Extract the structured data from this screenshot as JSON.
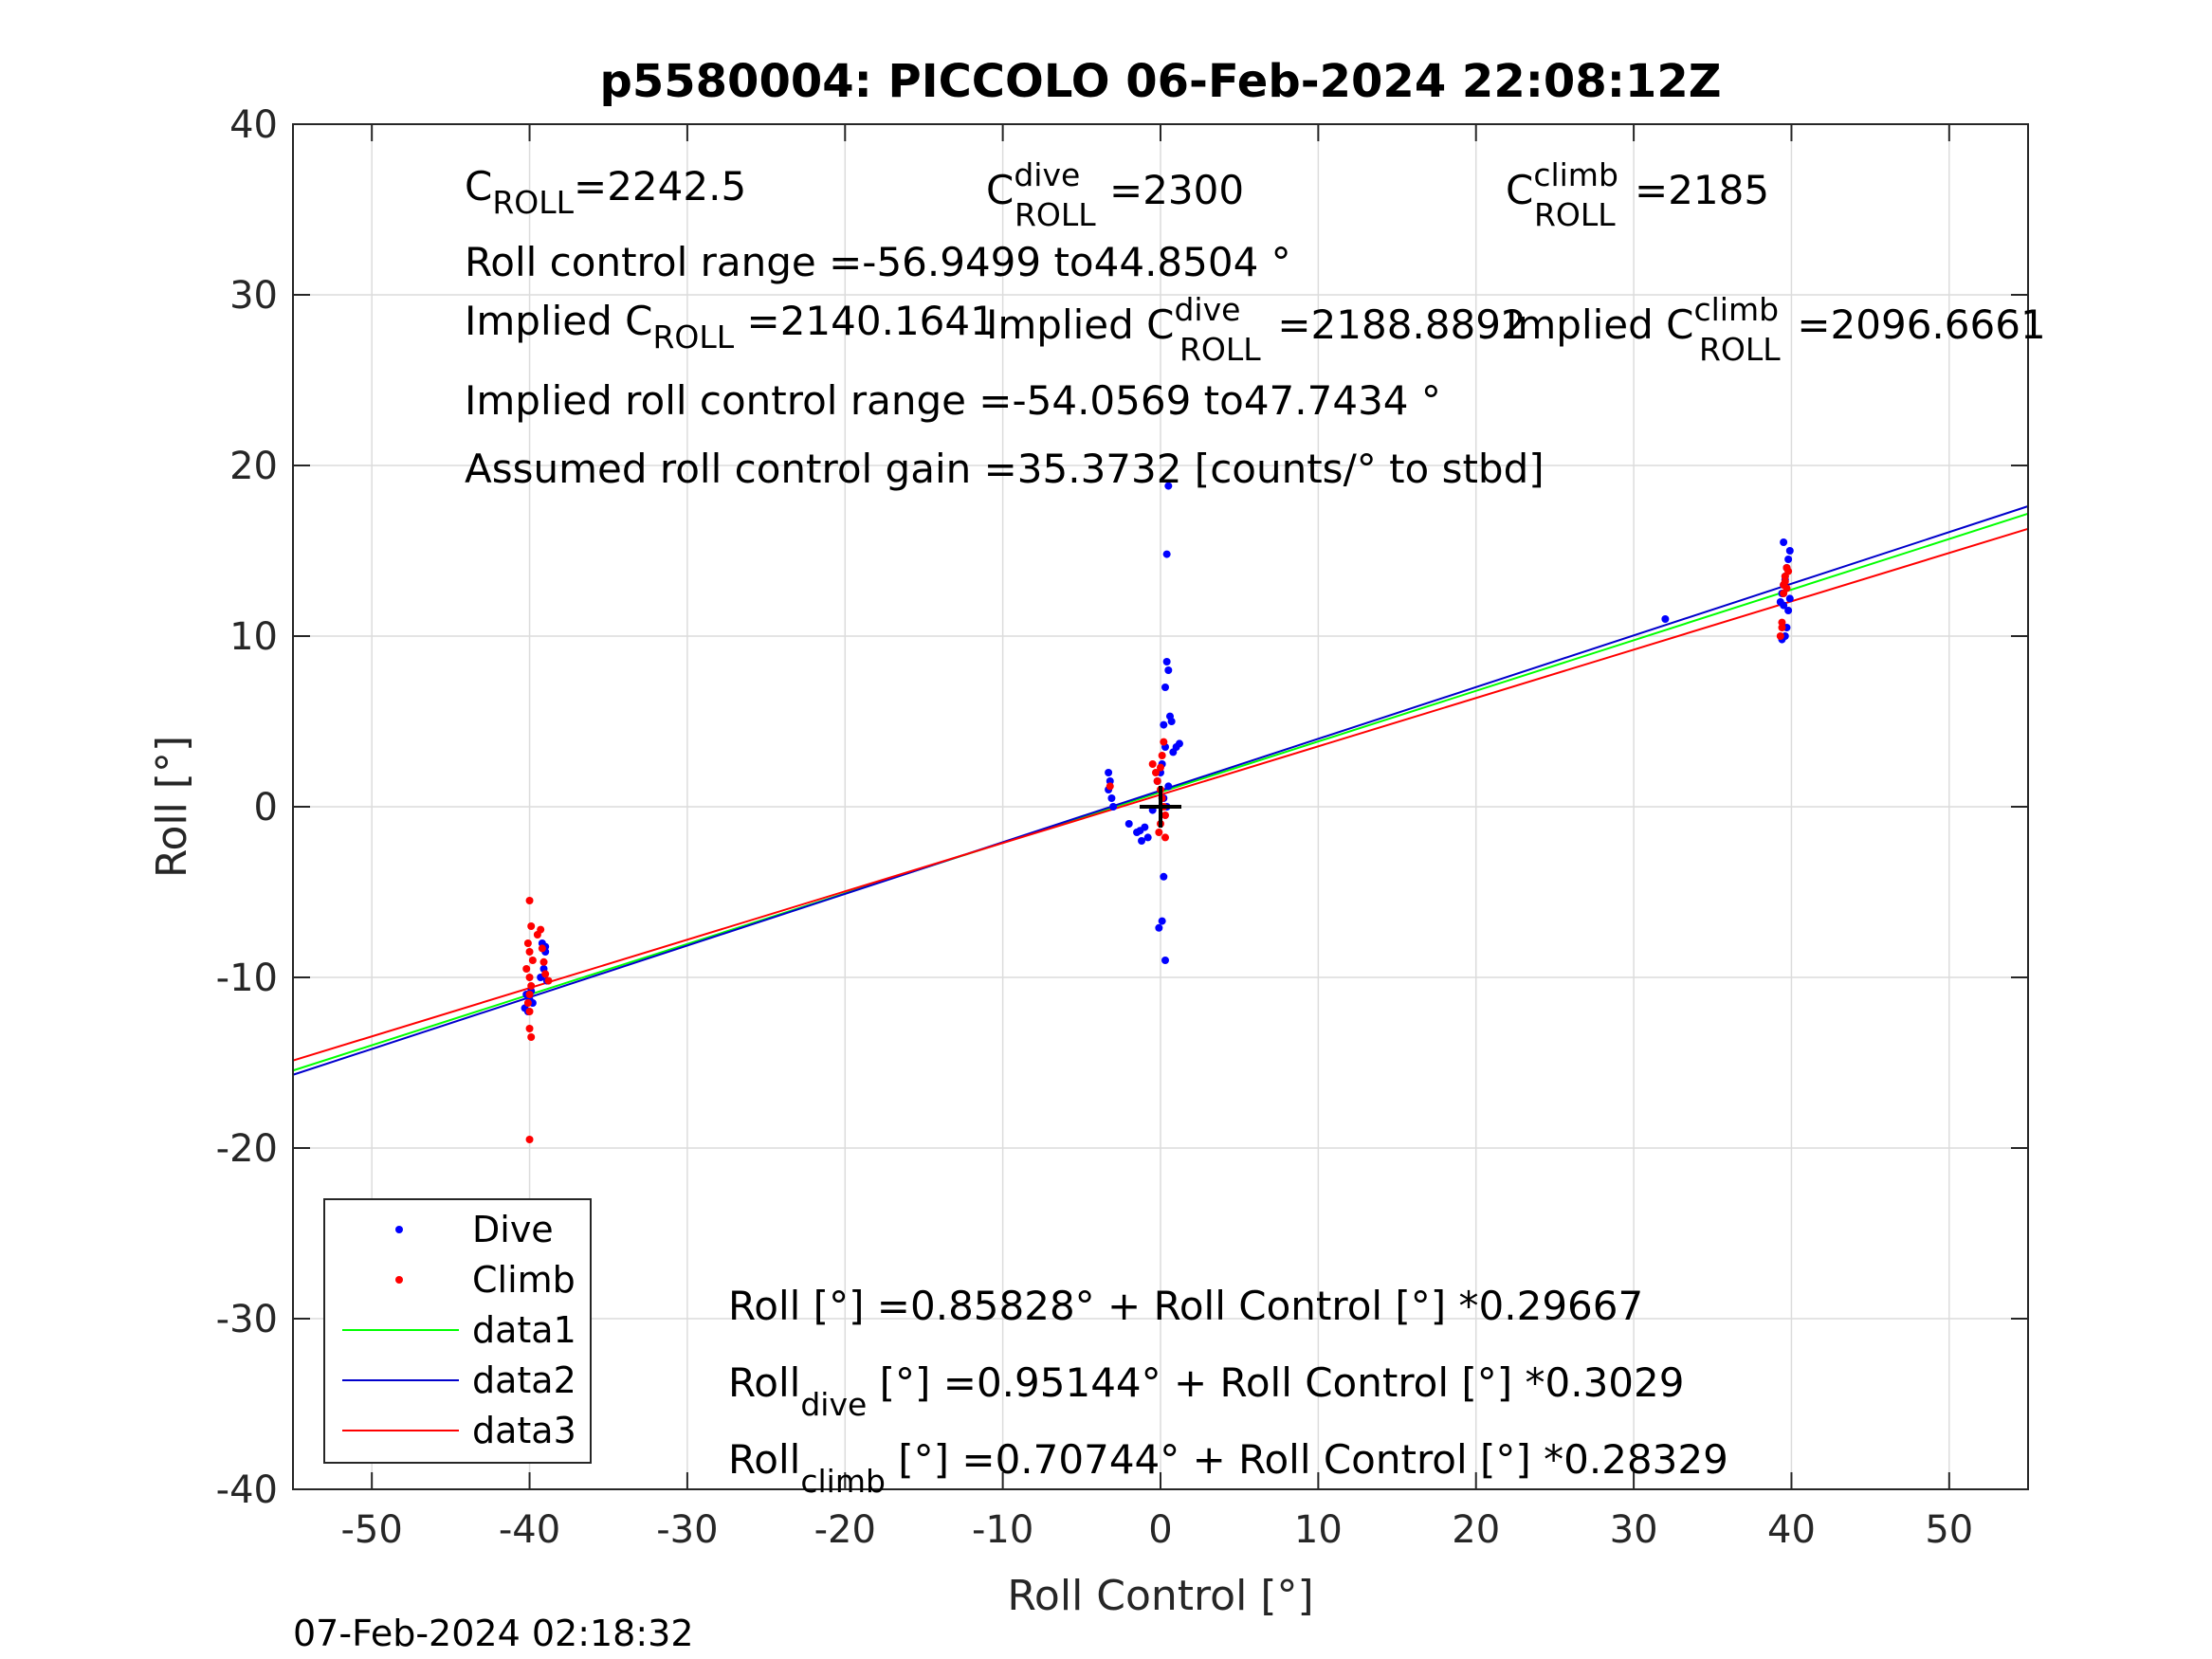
{
  "chart_data": {
    "type": "scatter",
    "title": "p5580004: PICCOLO 06-Feb-2024 22:08:12Z",
    "xlabel": "Roll Control [°]",
    "ylabel": "Roll [°]",
    "xlim": [
      -55,
      55
    ],
    "ylim": [
      -40,
      40
    ],
    "xticks": [
      -50,
      -40,
      -30,
      -20,
      -10,
      0,
      10,
      20,
      30,
      40,
      50
    ],
    "yticks": [
      -40,
      -30,
      -20,
      -10,
      0,
      10,
      20,
      30,
      40
    ],
    "grid": true,
    "legend_position": "bottom-left",
    "timestamp": "07-Feb-2024 02:18:32",
    "annotations": {
      "c_roll_base": "C",
      "c_roll_sub": "ROLL",
      "c_roll_value": "=2242.5",
      "c_dive_base": "C",
      "c_dive_sup": "dive",
      "c_dive_sub": "ROLL",
      "c_dive_value": "=2300",
      "c_climb_base": "C",
      "c_climb_sup": "climb",
      "c_climb_sub": "ROLL",
      "c_climb_value": "=2185",
      "roll_range": "Roll control range =-56.9499 to44.8504 °",
      "implied_c_label": "Implied C",
      "implied_c_sub": "ROLL",
      "implied_c_value": " =2140.1641",
      "implied_dive_label": "Implied C",
      "implied_dive_sup": "dive",
      "implied_dive_sub": "ROLL",
      "implied_dive_value": " =2188.8892",
      "implied_climb_label": "Implied C",
      "implied_climb_sup": "climb",
      "implied_climb_sub": "ROLL",
      "implied_climb_value": " =2096.6661",
      "implied_range": "Implied roll control range =-54.0569 to47.7434 °",
      "gain": "Assumed roll control gain =35.3732 [counts/° to stbd]",
      "fit_all": "Roll [°] =0.85828° + Roll Control [°] *0.29667",
      "fit_dive_base": "Roll",
      "fit_dive_sub": "dive",
      "fit_dive_rest": " [°] =0.95144° + Roll Control [°] *0.3029",
      "fit_climb_base": "Roll",
      "fit_climb_sub": "climb",
      "fit_climb_rest": " [°] =0.70744° + Roll Control [°] *0.28329"
    },
    "marker": {
      "x": 0,
      "y": 0,
      "style": "plus",
      "color": "#000000"
    },
    "colors": {
      "dive": "#0000ff",
      "climb": "#ff0000",
      "data1": "#00ff00",
      "data2": "#0000cc",
      "data3": "#ff0000"
    },
    "series": [
      {
        "name": "Dive",
        "kind": "points",
        "color": "#0000ff",
        "x": [
          -40.2,
          -40.0,
          -39.8,
          -40.3,
          -39.9,
          -40.1,
          -39.2,
          -39.0,
          -39.1,
          -39.3,
          -38.9,
          -39.0,
          -3.3,
          -3.2,
          -3.3,
          -3.1,
          -3.0,
          -2.0,
          -1.5,
          -1.2,
          -1.0,
          -0.8,
          -1.3,
          -0.5,
          -0.2,
          0.0,
          0.1,
          0.2,
          0.3,
          0.4,
          0.5,
          0.6,
          0.7,
          0.8,
          1.0,
          1.2,
          0.5,
          0.4,
          0.3,
          0.2,
          0.1,
          -0.1,
          0.3,
          0.2,
          0.5,
          0.4,
          32.0,
          39.3,
          39.4,
          39.5,
          39.6,
          39.7,
          39.8,
          39.9,
          39.5,
          39.6,
          39.4,
          39.7,
          39.8,
          39.5,
          39.9,
          39.6
        ],
        "y": [
          -11.0,
          -11.3,
          -11.5,
          -11.8,
          -10.8,
          -12.0,
          -8.0,
          -8.5,
          -9.5,
          -10.0,
          -10.2,
          -8.2,
          2.0,
          1.5,
          1.0,
          0.5,
          0.0,
          -1.0,
          -1.5,
          -2.0,
          -1.2,
          -1.8,
          -1.4,
          -0.2,
          1.5,
          2.0,
          2.5,
          4.8,
          3.5,
          8.5,
          8.0,
          5.3,
          5.0,
          3.2,
          3.5,
          3.7,
          18.8,
          14.8,
          7.0,
          -4.1,
          -6.7,
          -7.1,
          -9.0,
          0.5,
          1.2,
          0.0,
          11.0,
          12.0,
          12.5,
          13.0,
          13.5,
          14.0,
          14.5,
          15.0,
          15.5,
          10.0,
          9.8,
          10.5,
          11.5,
          11.8,
          12.2,
          13.3
        ]
      },
      {
        "name": "Climb",
        "kind": "points",
        "color": "#ff0000",
        "x": [
          -40.0,
          -39.9,
          -40.1,
          -40.0,
          -39.8,
          -40.2,
          -40.0,
          -39.9,
          -40.0,
          -40.1,
          -39.5,
          -39.3,
          -39.2,
          -39.0,
          -38.8,
          -39.1,
          -40.0,
          -40.0,
          -39.9,
          -40.0,
          -3.2,
          -0.5,
          -0.3,
          -0.2,
          0.0,
          0.1,
          0.2,
          0.3,
          0.0,
          -0.1,
          0.2,
          0.1,
          0.0,
          0.3,
          39.3,
          39.4,
          39.5,
          39.6,
          39.7,
          39.8,
          39.5,
          39.6,
          39.4,
          39.7
        ],
        "y": [
          -5.5,
          -7.0,
          -8.0,
          -8.5,
          -9.0,
          -9.5,
          -10.0,
          -10.5,
          -11.0,
          -11.5,
          -7.5,
          -7.2,
          -8.3,
          -9.8,
          -10.2,
          -9.1,
          -12.0,
          -13.0,
          -13.5,
          -19.5,
          1.2,
          2.5,
          2.0,
          1.5,
          1.0,
          0.5,
          0.0,
          -0.5,
          -1.0,
          -1.5,
          3.8,
          3.0,
          2.3,
          -1.8,
          10.0,
          10.5,
          13.0,
          13.5,
          14.0,
          13.8,
          12.5,
          13.2,
          10.8,
          12.8
        ]
      },
      {
        "name": "data1",
        "kind": "line",
        "color": "#00ff00",
        "intercept": 0.85828,
        "slope": 0.29667
      },
      {
        "name": "data2",
        "kind": "line",
        "color": "#0000cc",
        "intercept": 0.95144,
        "slope": 0.3029
      },
      {
        "name": "data3",
        "kind": "line",
        "color": "#ff0000",
        "intercept": 0.70744,
        "slope": 0.28329
      }
    ]
  }
}
